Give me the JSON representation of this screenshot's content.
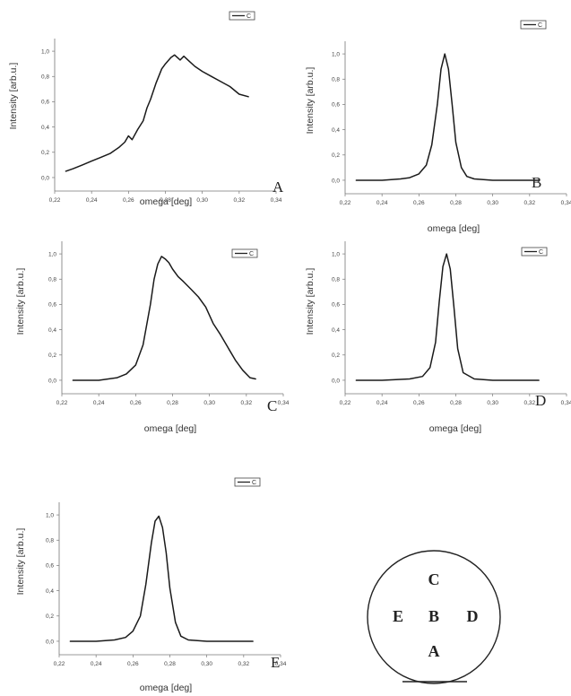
{
  "figure": {
    "panels": [
      {
        "label": "A",
        "legend": "C",
        "xlabel": "omega [deg]",
        "ylabel": "Intensity [arb.u.]"
      },
      {
        "label": "B",
        "legend": "C",
        "xlabel": "omega [deg]",
        "ylabel": "Intensity [arb.u.]"
      },
      {
        "label": "C",
        "legend": "C",
        "xlabel": "omega [deg]",
        "ylabel": "Intensity [arb.u.]"
      },
      {
        "label": "D",
        "legend": "C",
        "xlabel": "omega [deg]",
        "ylabel": "Intensity [arb.u.]"
      },
      {
        "label": "E",
        "legend": "C",
        "xlabel": "omega [deg]",
        "ylabel": "Intensity [arb.u.]"
      }
    ],
    "wafer_map": {
      "top": "C",
      "left": "E",
      "center": "B",
      "right": "D",
      "bottom": "A"
    }
  },
  "chart_data": [
    {
      "type": "line",
      "panel": "A",
      "xlabel": "omega [deg]",
      "ylabel": "Intensity [arb.u.]",
      "xlim": [
        0.22,
        0.34
      ],
      "ylim": [
        -0.05,
        1.1
      ],
      "xticks": [
        "0,22",
        "0,24",
        "0,26",
        "0,28",
        "0,30",
        "0,32",
        "0,34"
      ],
      "yticks": [
        "0,0",
        "0,2",
        "0,4",
        "0,6",
        "0,8",
        "1,0"
      ],
      "legend": [
        "C"
      ],
      "series": [
        {
          "name": "C",
          "x": [
            0.226,
            0.23,
            0.235,
            0.24,
            0.245,
            0.25,
            0.255,
            0.258,
            0.26,
            0.262,
            0.265,
            0.268,
            0.27,
            0.272,
            0.275,
            0.278,
            0.28,
            0.283,
            0.285,
            0.288,
            0.29,
            0.293,
            0.296,
            0.3,
            0.305,
            0.31,
            0.315,
            0.32,
            0.325
          ],
          "y": [
            0.05,
            0.07,
            0.1,
            0.13,
            0.16,
            0.19,
            0.24,
            0.28,
            0.33,
            0.3,
            0.38,
            0.45,
            0.55,
            0.62,
            0.75,
            0.86,
            0.9,
            0.95,
            0.97,
            0.93,
            0.96,
            0.92,
            0.88,
            0.84,
            0.8,
            0.76,
            0.72,
            0.66,
            0.64
          ]
        }
      ]
    },
    {
      "type": "line",
      "panel": "B",
      "xlabel": "omega [deg]",
      "ylabel": "Intensity [arb.u.]",
      "xlim": [
        0.22,
        0.34
      ],
      "ylim": [
        -0.05,
        1.1
      ],
      "xticks": [
        "0,22",
        "0,24",
        "0,26",
        "0,28",
        "0,30",
        "0,32",
        "0,34"
      ],
      "yticks": [
        "0,0",
        "0,2",
        "0,4",
        "0,6",
        "0,8",
        "1,0"
      ],
      "legend": [
        "C"
      ],
      "series": [
        {
          "name": "C",
          "x": [
            0.226,
            0.24,
            0.25,
            0.255,
            0.26,
            0.264,
            0.267,
            0.27,
            0.272,
            0.274,
            0.276,
            0.278,
            0.28,
            0.283,
            0.286,
            0.29,
            0.3,
            0.31,
            0.325
          ],
          "y": [
            0.0,
            0.0,
            0.01,
            0.02,
            0.05,
            0.12,
            0.28,
            0.6,
            0.88,
            1.0,
            0.88,
            0.6,
            0.3,
            0.1,
            0.03,
            0.01,
            0.0,
            0.0,
            0.0
          ]
        }
      ]
    },
    {
      "type": "line",
      "panel": "C",
      "xlabel": "omega [deg]",
      "ylabel": "Intensity [arb.u.]",
      "xlim": [
        0.22,
        0.34
      ],
      "ylim": [
        -0.05,
        1.1
      ],
      "xticks": [
        "0,22",
        "0,24",
        "0,26",
        "0,28",
        "0,30",
        "0,32",
        "0,34"
      ],
      "yticks": [
        "0,0",
        "0,2",
        "0,4",
        "0,6",
        "0,8",
        "1,0"
      ],
      "legend": [
        "C"
      ],
      "series": [
        {
          "name": "C",
          "x": [
            0.226,
            0.24,
            0.25,
            0.255,
            0.26,
            0.264,
            0.268,
            0.27,
            0.272,
            0.274,
            0.276,
            0.278,
            0.28,
            0.283,
            0.286,
            0.29,
            0.294,
            0.298,
            0.302,
            0.306,
            0.31,
            0.314,
            0.318,
            0.322,
            0.325
          ],
          "y": [
            0.0,
            0.0,
            0.02,
            0.05,
            0.12,
            0.28,
            0.6,
            0.8,
            0.92,
            0.98,
            0.96,
            0.93,
            0.88,
            0.82,
            0.78,
            0.72,
            0.66,
            0.58,
            0.45,
            0.36,
            0.26,
            0.16,
            0.08,
            0.02,
            0.01
          ]
        }
      ]
    },
    {
      "type": "line",
      "panel": "D",
      "xlabel": "omega [deg]",
      "ylabel": "Intensity [arb.u.]",
      "xlim": [
        0.22,
        0.34
      ],
      "ylim": [
        -0.05,
        1.1
      ],
      "xticks": [
        "0,22",
        "0,24",
        "0,26",
        "0,28",
        "0,30",
        "0,32",
        "0,34"
      ],
      "yticks": [
        "0,0",
        "0,2",
        "0,4",
        "0,6",
        "0,8",
        "1,0"
      ],
      "legend": [
        "C"
      ],
      "series": [
        {
          "name": "C",
          "x": [
            0.226,
            0.24,
            0.255,
            0.262,
            0.266,
            0.269,
            0.271,
            0.273,
            0.275,
            0.277,
            0.279,
            0.281,
            0.284,
            0.29,
            0.3,
            0.325
          ],
          "y": [
            0.0,
            0.0,
            0.01,
            0.03,
            0.1,
            0.3,
            0.62,
            0.9,
            1.0,
            0.88,
            0.58,
            0.25,
            0.06,
            0.01,
            0.0,
            0.0
          ]
        }
      ]
    },
    {
      "type": "line",
      "panel": "E",
      "xlabel": "omega [deg]",
      "ylabel": "Intensity [arb.u.]",
      "xlim": [
        0.22,
        0.34
      ],
      "ylim": [
        -0.05,
        1.1
      ],
      "xticks": [
        "0,22",
        "0,24",
        "0,26",
        "0,28",
        "0,30",
        "0,32",
        "0,34"
      ],
      "yticks": [
        "0,0",
        "0,2",
        "0,4",
        "0,6",
        "0,8",
        "1,0"
      ],
      "legend": [
        "C"
      ],
      "series": [
        {
          "name": "C",
          "x": [
            0.226,
            0.24,
            0.25,
            0.256,
            0.26,
            0.264,
            0.267,
            0.27,
            0.272,
            0.274,
            0.276,
            0.278,
            0.28,
            0.283,
            0.286,
            0.29,
            0.3,
            0.325
          ],
          "y": [
            0.0,
            0.0,
            0.01,
            0.03,
            0.08,
            0.2,
            0.45,
            0.78,
            0.95,
            0.99,
            0.9,
            0.7,
            0.42,
            0.15,
            0.04,
            0.01,
            0.0,
            0.0
          ]
        }
      ]
    }
  ]
}
